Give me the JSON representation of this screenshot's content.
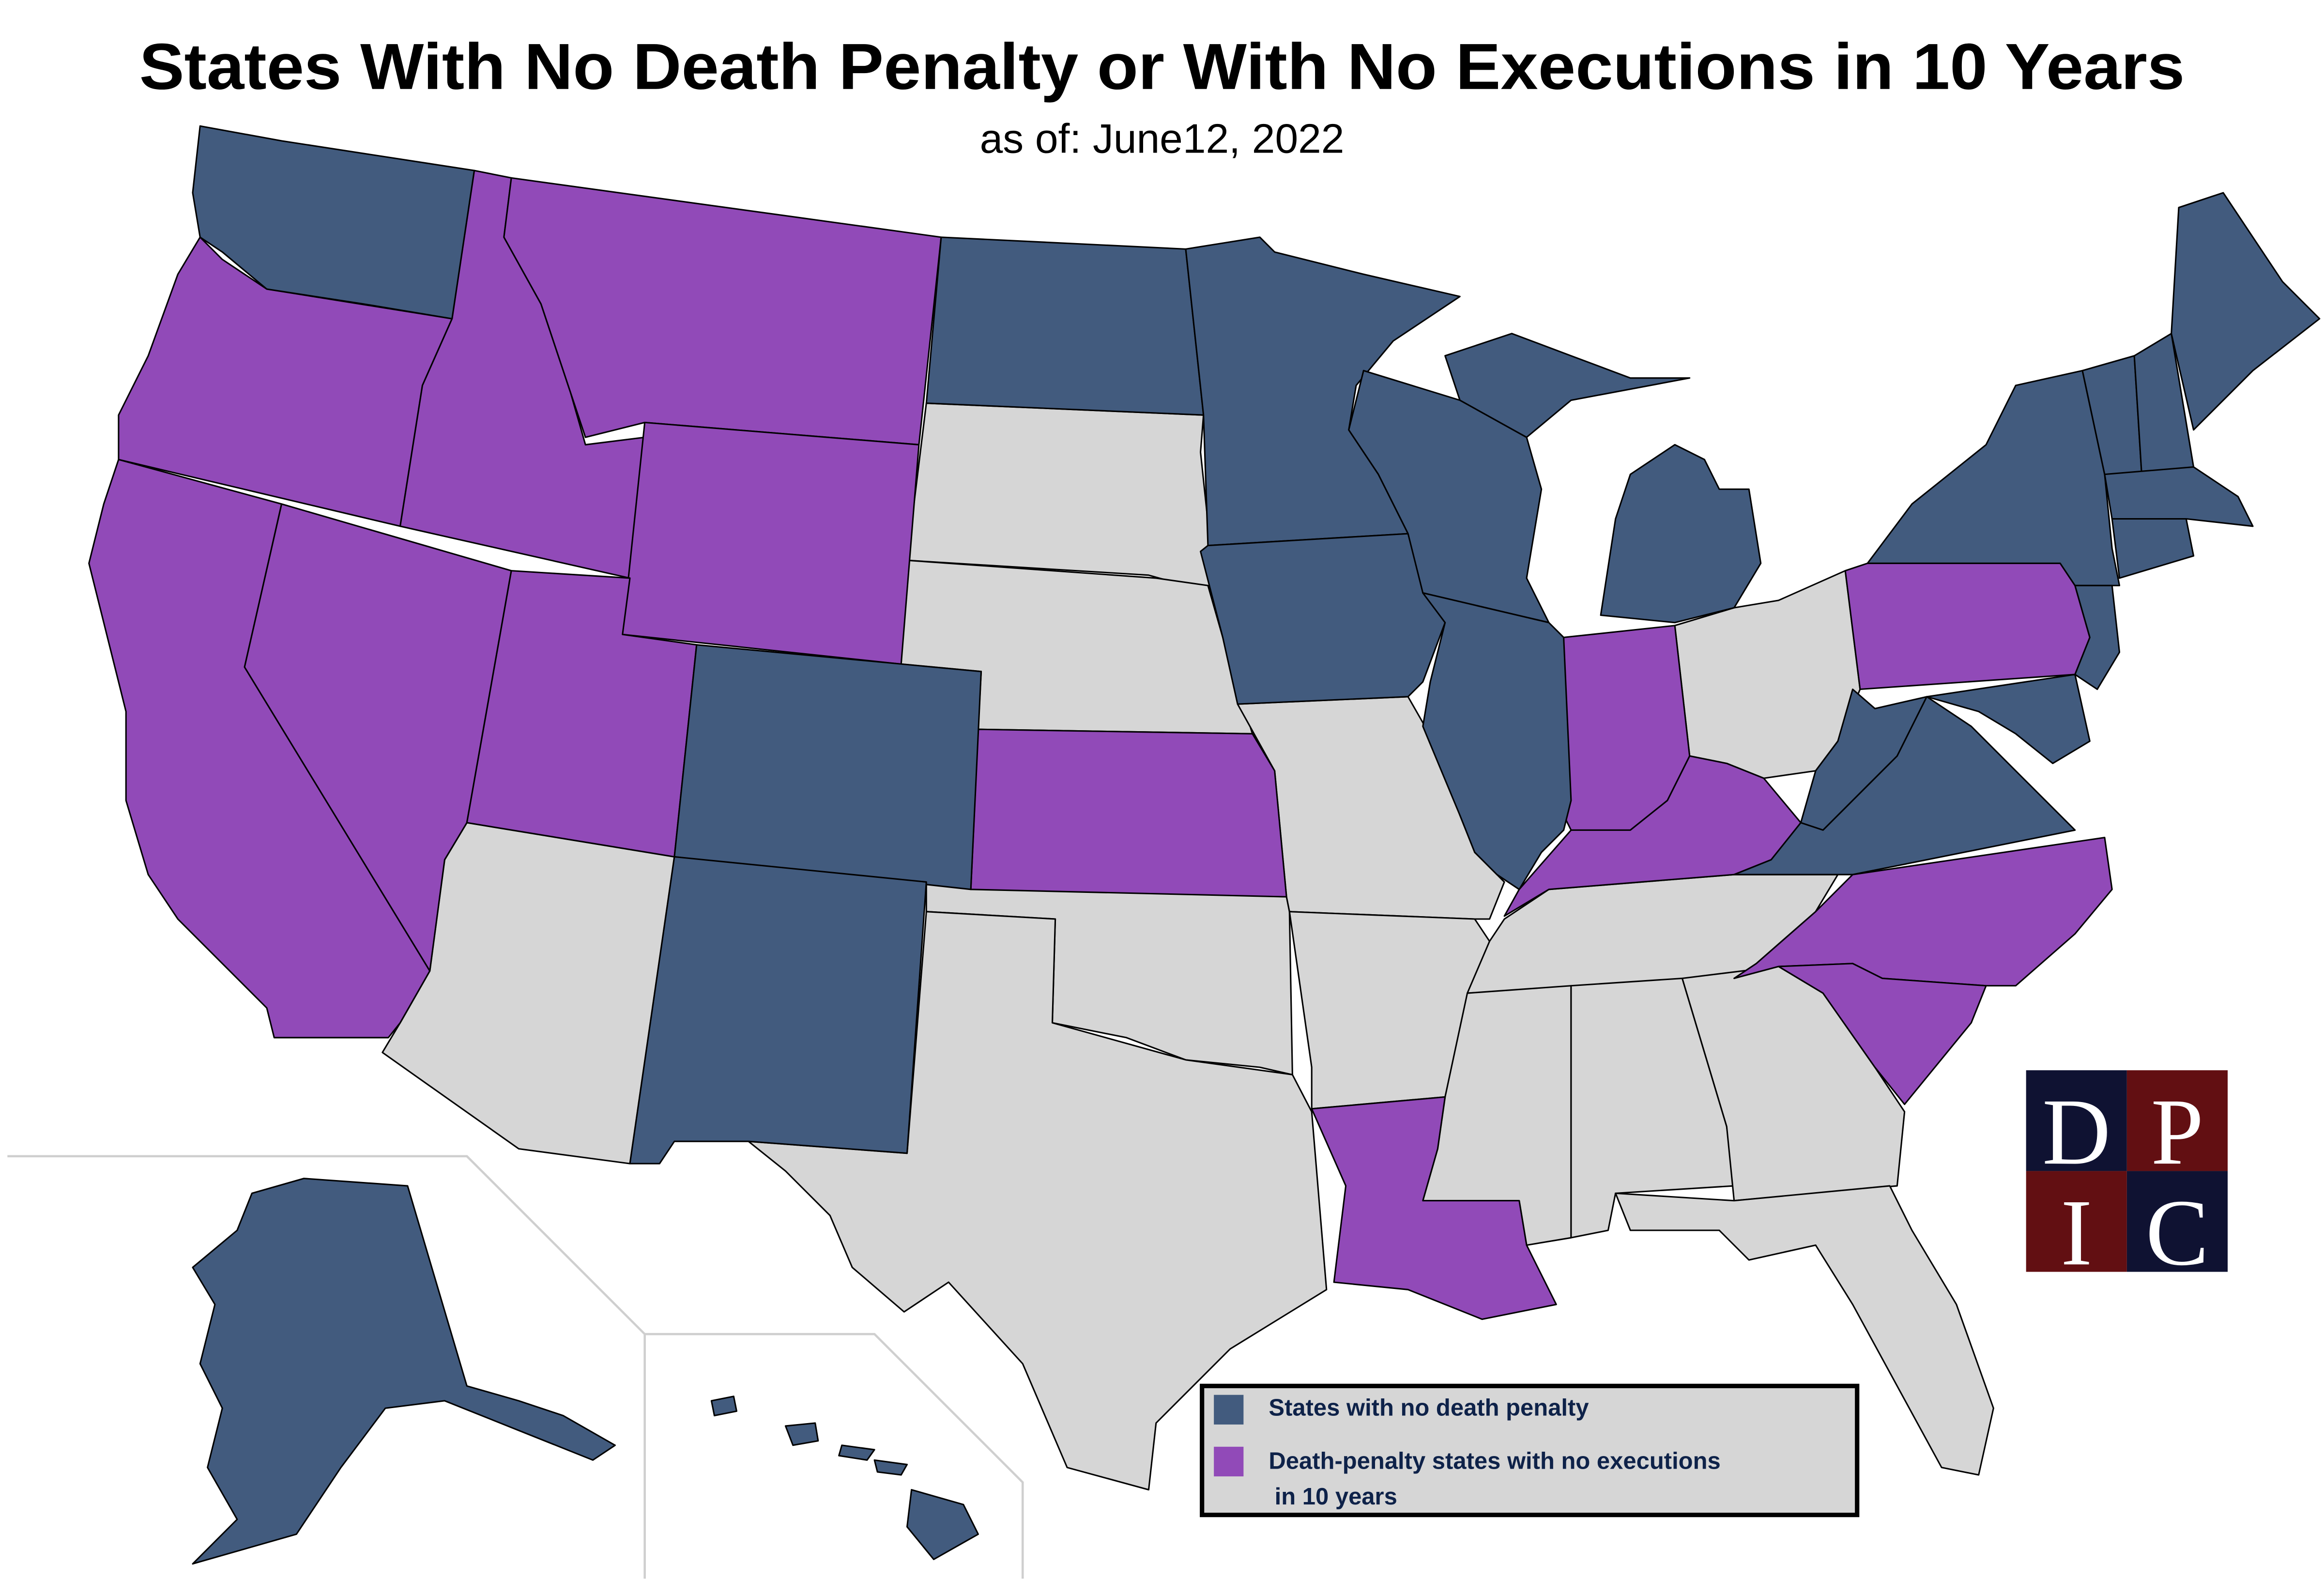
{
  "header": {
    "title": "States With No Death Penalty or With No Executions in 10 Years",
    "subtitle": "as of: June12, 2022"
  },
  "legend": {
    "items": [
      {
        "label": "States with no death penalty",
        "color": "#425b7e"
      },
      {
        "label_line1": "Death-penalty states with no executions",
        "label_line2": "in 10 years",
        "color": "#914ab8"
      }
    ]
  },
  "colors": {
    "no_death_penalty": "#425b7e",
    "no_executions_10y": "#914ab8",
    "other": "#d6d6d6",
    "logo_navy": "#0f1232",
    "logo_red": "#620f12"
  },
  "logo": {
    "letters": [
      "D",
      "P",
      "I",
      "C"
    ]
  }
}
